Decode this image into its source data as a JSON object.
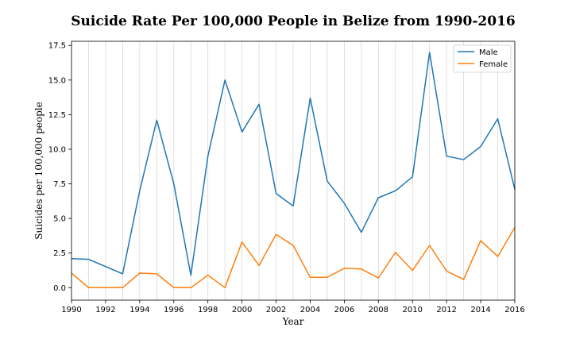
{
  "chart_data": {
    "type": "line",
    "title": "Suicide Rate Per 100,000 People in Belize from 1990-2016",
    "xlabel": "Year",
    "ylabel": "Suicides per 100,000 people",
    "xlim": [
      1990,
      2016
    ],
    "ylim": [
      -0.9,
      17.8
    ],
    "x_ticks": [
      1990,
      1992,
      1994,
      1996,
      1998,
      2000,
      2002,
      2004,
      2006,
      2008,
      2010,
      2012,
      2014,
      2016
    ],
    "y_ticks": [
      0.0,
      2.5,
      5.0,
      7.5,
      10.0,
      12.5,
      15.0,
      17.5
    ],
    "y_tick_labels": [
      "0.0",
      "2.5",
      "5.0",
      "7.5",
      "10.0",
      "12.5",
      "15.0",
      "17.5"
    ],
    "grid": "vertical",
    "legend": "top-right",
    "x": [
      1990,
      1991,
      1993,
      1994,
      1995,
      1996,
      1997,
      1998,
      1999,
      2000,
      2001,
      2002,
      2003,
      2004,
      2005,
      2006,
      2007,
      2008,
      2009,
      2010,
      2011,
      2012,
      2013,
      2014,
      2015,
      2016
    ],
    "series": [
      {
        "name": "Male",
        "color": "#1f77b4",
        "values": [
          2.1,
          2.05,
          1.0,
          7.0,
          12.1,
          7.5,
          0.9,
          9.5,
          15.0,
          11.25,
          13.25,
          6.8,
          5.9,
          13.7,
          7.7,
          6.1,
          4.0,
          6.5,
          7.0,
          8.0,
          17.0,
          9.5,
          9.25,
          10.2,
          12.2,
          7.1
        ]
      },
      {
        "name": "Female",
        "color": "#ff7f0e",
        "values": [
          1.05,
          0.0,
          0.0,
          1.05,
          1.0,
          0.0,
          0.0,
          0.9,
          0.0,
          3.3,
          1.6,
          3.85,
          3.05,
          0.75,
          0.75,
          1.4,
          1.35,
          0.7,
          2.55,
          1.25,
          3.05,
          1.2,
          0.6,
          3.4,
          2.25,
          4.35
        ]
      }
    ]
  }
}
